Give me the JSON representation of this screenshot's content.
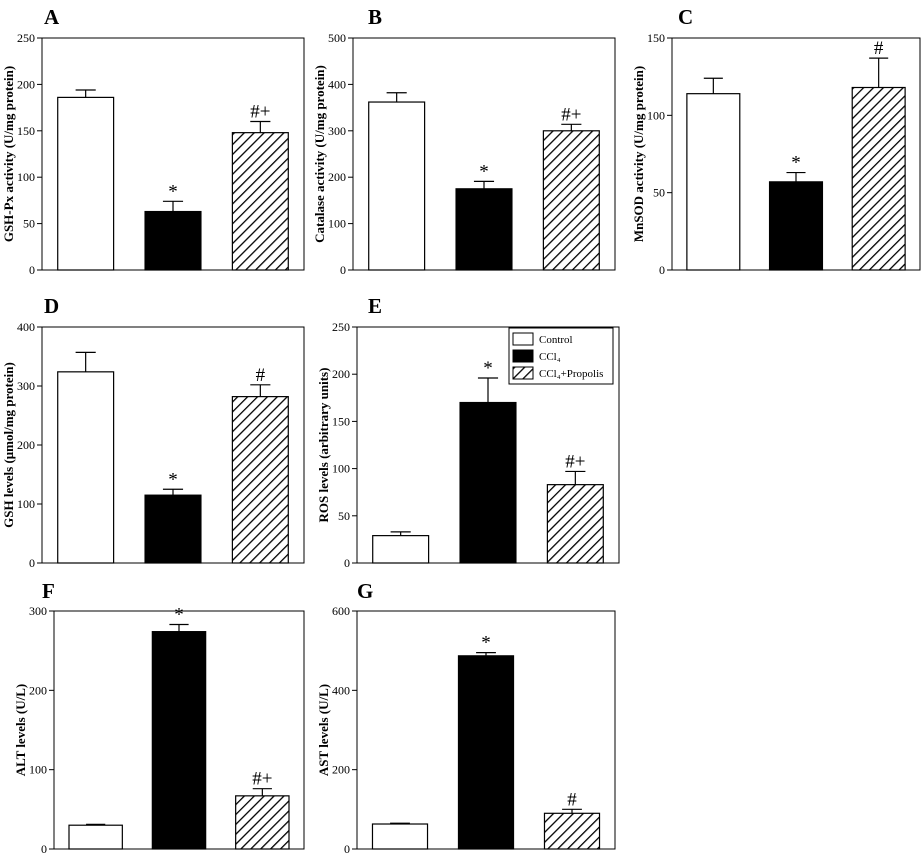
{
  "legend": {
    "items": [
      {
        "label": "Control",
        "style": "open"
      },
      {
        "label": "CCl₄",
        "style": "solid"
      },
      {
        "label": "CCl₄+Propolis",
        "style": "hatched"
      }
    ]
  },
  "colors": {
    "open": "#ffffff",
    "solid": "#000000",
    "stroke": "#000000"
  },
  "chart_data": [
    {
      "panel": "A",
      "type": "bar",
      "ylabel": "GSH-Px activity (U/mg protein)",
      "ylim": [
        0,
        250
      ],
      "ticks": [
        0,
        50,
        100,
        150,
        200,
        250
      ],
      "categories": [
        "Control",
        "CCl₄",
        "CCl₄+Propolis"
      ],
      "values": [
        186,
        63,
        148
      ],
      "errors": [
        8,
        11,
        12
      ],
      "sig": [
        "",
        "*",
        "#+"
      ]
    },
    {
      "panel": "B",
      "type": "bar",
      "ylabel": "Catalase activity (U/mg protein)",
      "ylim": [
        0,
        500
      ],
      "ticks": [
        0,
        100,
        200,
        300,
        400,
        500
      ],
      "categories": [
        "Control",
        "CCl₄",
        "CCl₄+Propolis"
      ],
      "values": [
        362,
        175,
        300
      ],
      "errors": [
        20,
        16,
        14
      ],
      "sig": [
        "",
        "*",
        "#+"
      ]
    },
    {
      "panel": "C",
      "type": "bar",
      "ylabel": "MnSOD activity (U/mg protein)",
      "ylim": [
        0,
        150
      ],
      "ticks": [
        0,
        50,
        100,
        150
      ],
      "categories": [
        "Control",
        "CCl₄",
        "CCl₄+Propolis"
      ],
      "values": [
        114,
        57,
        118
      ],
      "errors": [
        10,
        6,
        19
      ],
      "sig": [
        "",
        "*",
        "#"
      ]
    },
    {
      "panel": "D",
      "type": "bar",
      "ylabel": "GSH levels (μmol/mg protein)",
      "ylim": [
        0,
        400
      ],
      "ticks": [
        0,
        100,
        200,
        300,
        400
      ],
      "categories": [
        "Control",
        "CCl₄",
        "CCl₄+Propolis"
      ],
      "values": [
        324,
        115,
        282
      ],
      "errors": [
        33,
        10,
        20
      ],
      "sig": [
        "",
        "*",
        "#"
      ]
    },
    {
      "panel": "E",
      "type": "bar",
      "ylabel": "ROS levels (arbitrary units)",
      "ylim": [
        0,
        250
      ],
      "ticks": [
        0,
        50,
        100,
        150,
        200,
        250
      ],
      "categories": [
        "Control",
        "CCl₄",
        "CCl₄+Propolis"
      ],
      "values": [
        29,
        170,
        83
      ],
      "errors": [
        4,
        26,
        14
      ],
      "sig": [
        "",
        "*",
        "#+"
      ]
    },
    {
      "panel": "F",
      "type": "bar",
      "ylabel": "ALT levels (U/L)",
      "ylim": [
        0,
        300
      ],
      "ticks": [
        0,
        100,
        200,
        300
      ],
      "categories": [
        "Control",
        "CCl₄",
        "CCl₄+Propolis"
      ],
      "values": [
        30,
        274,
        67
      ],
      "errors": [
        1,
        9,
        9
      ],
      "sig": [
        "",
        "*",
        "#+"
      ]
    },
    {
      "panel": "G",
      "type": "bar",
      "ylabel": "AST levels (U/L)",
      "ylim": [
        0,
        600
      ],
      "ticks": [
        0,
        200,
        400,
        600
      ],
      "categories": [
        "Control",
        "CCl₄",
        "CCl₄+Propolis"
      ],
      "values": [
        63,
        487,
        90
      ],
      "errors": [
        2,
        8,
        10
      ],
      "sig": [
        "",
        "*",
        "#"
      ]
    }
  ]
}
